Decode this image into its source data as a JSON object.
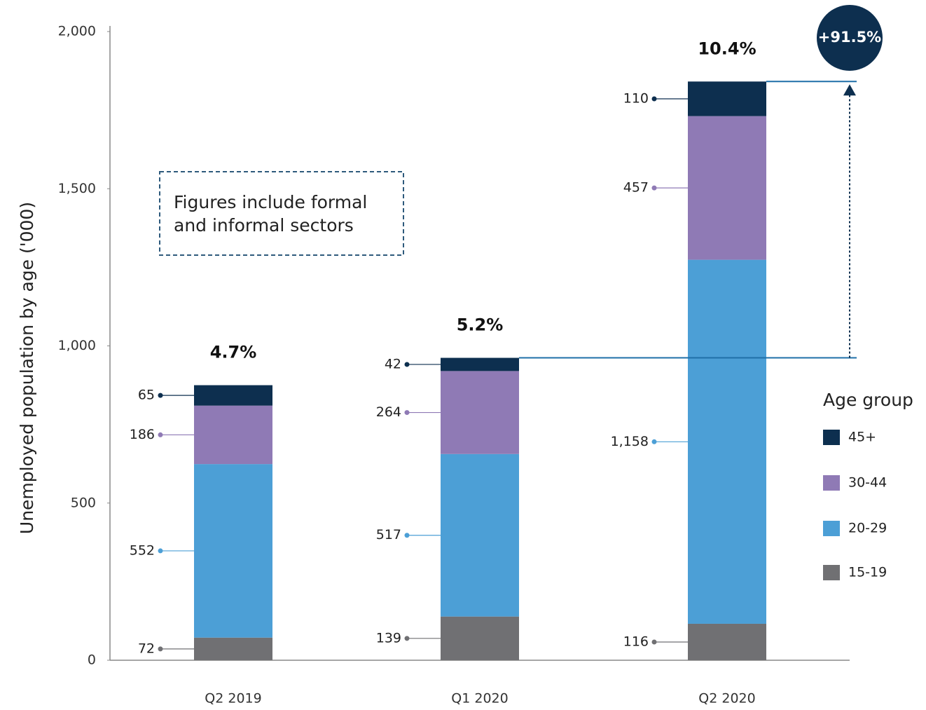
{
  "chart_data": {
    "type": "stacked_bar",
    "y_label": "Unemployed population by age ('000)",
    "categories": [
      "Q2 2019",
      "Q1 2020",
      "Q2 2020"
    ],
    "series": [
      {
        "name": "15-19",
        "color": "#707073",
        "values": [
          72,
          139,
          116
        ]
      },
      {
        "name": "20-29",
        "color": "#4c9fd6",
        "values": [
          552,
          517,
          1158
        ],
        "value_labels": [
          "552",
          "517",
          "1,158"
        ]
      },
      {
        "name": "30-44",
        "color": "#8f7ab5",
        "values": [
          186,
          264,
          457
        ]
      },
      {
        "name": "45+",
        "color": "#0d2f4f",
        "values": [
          65,
          42,
          110
        ]
      }
    ],
    "rate_labels": [
      "4.7%",
      "5.2%",
      "10.4%"
    ],
    "growth_label": "+91.5%",
    "note": [
      "Figures include formal",
      "and informal sectors"
    ],
    "legend_title": "Age group",
    "ylim": [
      0,
      2000
    ],
    "yticks": [
      0,
      500,
      {
        "value": 1000,
        "label": "1,000"
      },
      {
        "value": 1500,
        "label": "1,500"
      },
      {
        "value": 2000,
        "label": "2,000"
      }
    ]
  }
}
